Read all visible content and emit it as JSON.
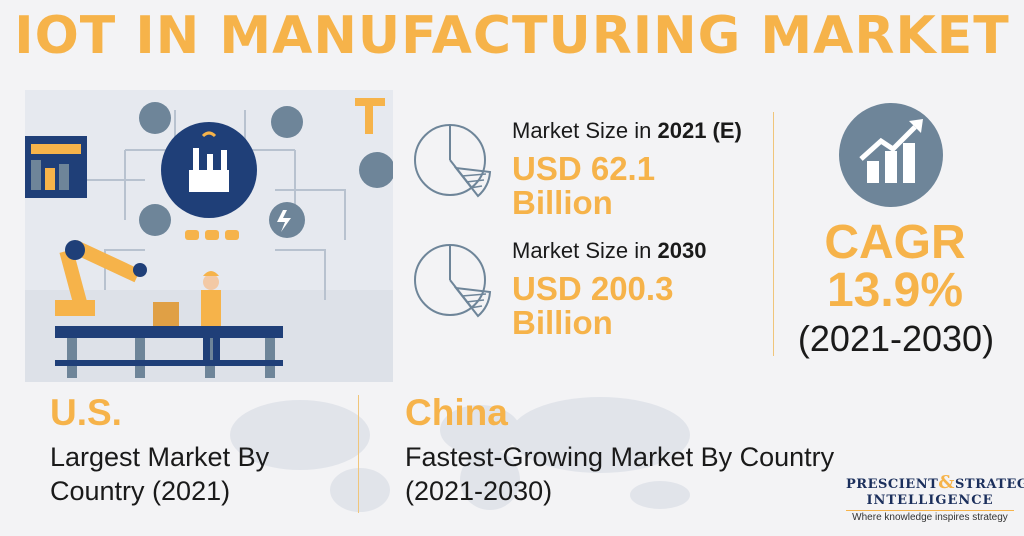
{
  "title": "IOT IN MANUFACTURING MARKET",
  "market_2021": {
    "label_prefix": "Market Size in ",
    "label_year": "2021 (E)",
    "value_line1": "USD 62.1",
    "value_line2": "Billion"
  },
  "market_2030": {
    "label_prefix": "Market Size in ",
    "label_year": "2030",
    "value_line1": "USD 200.3",
    "value_line2": "Billion"
  },
  "cagr": {
    "label": "CAGR",
    "value": "13.9%",
    "years": "(2021-2030)"
  },
  "largest": {
    "country": "U.S.",
    "line1": "Largest Market By",
    "line2": "Country (2021)"
  },
  "fastest": {
    "country": "China",
    "line1": "Fastest-Growing Market By Country",
    "line2": "(2021-2030)"
  },
  "logo": {
    "word1": "PRESCIENT",
    "amp": "&",
    "word2": "STRATEGIC",
    "word3": "INTELLIGENCE",
    "tagline": "Where knowledge inspires strategy"
  },
  "colors": {
    "accent": "#f6b34a",
    "icon_blue": "#6e8599",
    "navy": "#1b2f5c"
  },
  "icons": [
    "factory-icon",
    "pie-chart-icon",
    "growth-chart-icon",
    "robot-arm-icon",
    "worker-icon"
  ]
}
